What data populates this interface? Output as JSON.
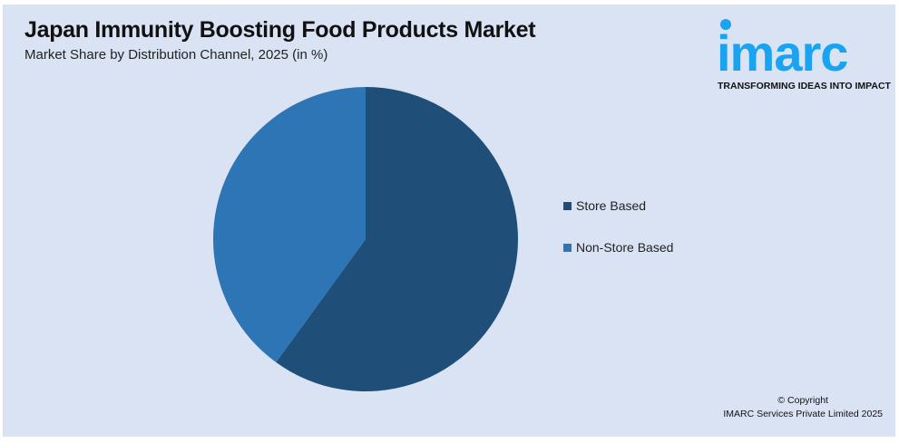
{
  "header": {
    "title": "Japan Immunity Boosting Food Products Market",
    "subtitle": "Market Share by Distribution Channel, 2025 (in %)"
  },
  "logo": {
    "word": "imarc",
    "tagline": "TRANSFORMING IDEAS INTO IMPACT",
    "color": "#1aa3f0"
  },
  "chart_data": {
    "type": "pie",
    "title": "Japan Immunity Boosting Food Products Market",
    "subtitle": "Market Share by Distribution Channel, 2025 (in %)",
    "categories": [
      "Store Based",
      "Non-Store Based"
    ],
    "values": [
      60,
      40
    ],
    "colors": [
      "#1f4e79",
      "#2e75b6"
    ],
    "start_angle": "12 o'clock, clockwise",
    "legend_placement": "right"
  },
  "footer": {
    "line1": "© Copyright",
    "line2": "IMARC Services Private Limited 2025"
  }
}
